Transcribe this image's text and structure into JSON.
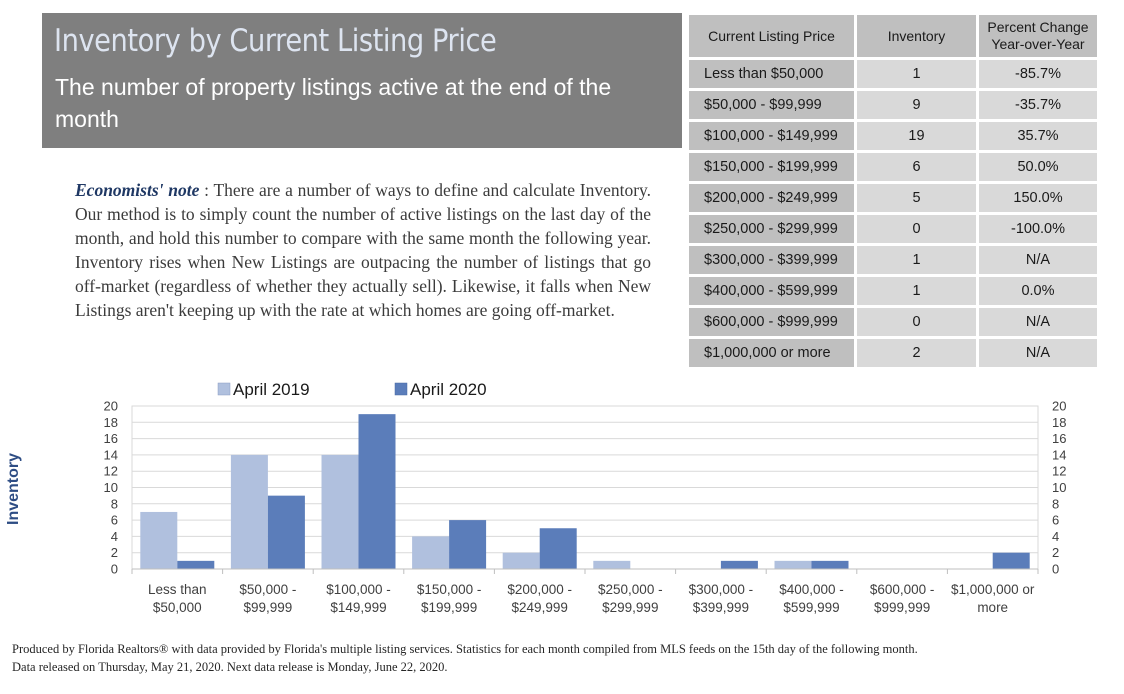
{
  "header": {
    "title": "Inventory by Current Listing Price",
    "subtitle": "The number of property listings active at the end of the month"
  },
  "note": {
    "lead": "Economists' note",
    "sep": " :  ",
    "text": "There are a number of ways to define and calculate Inventory. Our method is to simply count the number of active listings on the last day of the month, and hold this number to compare with the same month the following year. Inventory rises when New Listings are outpacing the number of listings that go off-market (regardless of whether they actually sell). Likewise, it falls when New Listings aren't keeping up with the rate at which homes are going off-market."
  },
  "table": {
    "headers": [
      "Current Listing Price",
      "Inventory",
      "Percent Change Year-over-Year"
    ],
    "rows": [
      [
        "Less than $50,000",
        "1",
        "-85.7%"
      ],
      [
        "$50,000 - $99,999",
        "9",
        "-35.7%"
      ],
      [
        "$100,000 - $149,999",
        "19",
        "35.7%"
      ],
      [
        "$150,000 - $199,999",
        "6",
        "50.0%"
      ],
      [
        "$200,000 - $249,999",
        "5",
        "150.0%"
      ],
      [
        "$250,000 - $299,999",
        "0",
        "-100.0%"
      ],
      [
        "$300,000 - $399,999",
        "1",
        "N/A"
      ],
      [
        "$400,000 - $599,999",
        "1",
        "0.0%"
      ],
      [
        "$600,000 - $999,999",
        "0",
        "N/A"
      ],
      [
        "$1,000,000 or more",
        "2",
        "N/A"
      ]
    ]
  },
  "chart_data": {
    "type": "bar",
    "ylabel": "Inventory",
    "xlabel": "",
    "ylim": [
      0,
      20
    ],
    "yticks": [
      0,
      2,
      4,
      6,
      8,
      10,
      12,
      14,
      16,
      18,
      20
    ],
    "grid": true,
    "legend_position": "top",
    "categories": [
      [
        "Less than",
        "$50,000"
      ],
      [
        "$50,000 -",
        "$99,999"
      ],
      [
        "$100,000 -",
        "$149,999"
      ],
      [
        "$150,000 -",
        "$199,999"
      ],
      [
        "$200,000 -",
        "$249,999"
      ],
      [
        "$250,000 -",
        "$299,999"
      ],
      [
        "$300,000 -",
        "$399,999"
      ],
      [
        "$400,000 -",
        "$599,999"
      ],
      [
        "$600,000 -",
        "$999,999"
      ],
      [
        "$1,000,000 or",
        "more"
      ]
    ],
    "series": [
      {
        "name": "April 2019",
        "color": "#b0c0de",
        "values": [
          7,
          14,
          14,
          4,
          2,
          1,
          0,
          1,
          0,
          0
        ]
      },
      {
        "name": "April 2020",
        "color": "#5b7dba",
        "values": [
          1,
          9,
          19,
          6,
          5,
          0,
          1,
          1,
          0,
          2
        ]
      }
    ]
  },
  "footer": {
    "line1": "Produced by Florida Realtors® with data provided by Florida's multiple listing services. Statistics for each month compiled from MLS feeds on the 15th day of the following month.",
    "line2": "Data released on Thursday, May 21, 2020. Next data release is Monday, June 22, 2020."
  }
}
